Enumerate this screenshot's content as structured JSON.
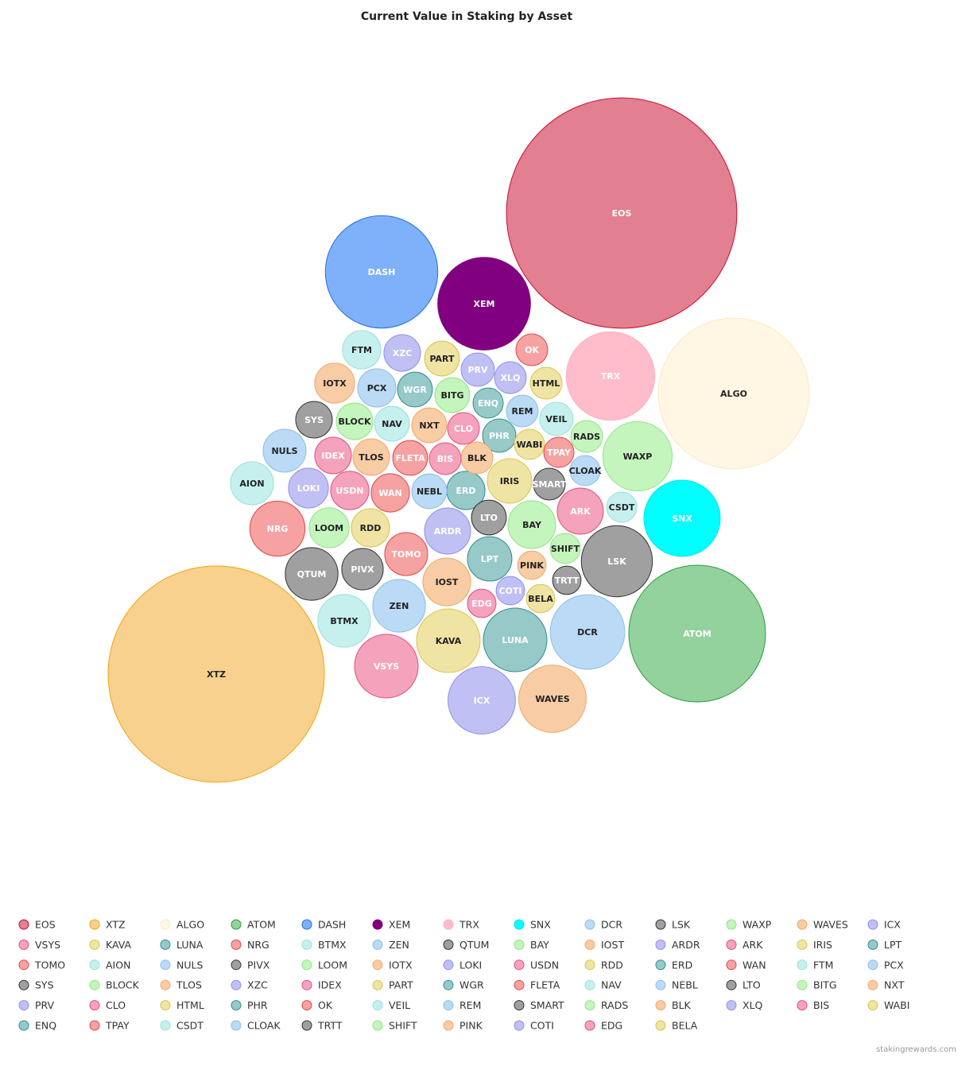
{
  "chart_data": {
    "type": "bubble",
    "title": "Current Value in Staking by Asset",
    "credit": "stakingrewards.com",
    "series": [
      {
        "name": "EOS",
        "color": "#e27f90",
        "value": 210
      },
      {
        "name": "XTZ",
        "color": "#f9d18f",
        "value": 185
      },
      {
        "name": "ALGO",
        "color": "#fff6e3",
        "value": 90
      },
      {
        "name": "ATOM",
        "color": "#93d29d",
        "value": 74
      },
      {
        "name": "DASH",
        "color": "#7fb0fa",
        "value": 50
      },
      {
        "name": "XEM",
        "color": "#800080",
        "value": 34
      },
      {
        "name": "TRX",
        "color": "#ffbccb",
        "value": 31
      },
      {
        "name": "SNX",
        "color": "#00ffff",
        "value": 23
      },
      {
        "name": "DCR",
        "color": "#badaf5",
        "value": 22
      },
      {
        "name": "LSK",
        "color": "#a0a0a0",
        "value": 20
      },
      {
        "name": "WAXP",
        "color": "#c4f5bd",
        "value": 19
      },
      {
        "name": "WAVES",
        "color": "#f8cca4",
        "value": 18
      },
      {
        "name": "ICX",
        "color": "#c0c0f4",
        "value": 18
      },
      {
        "name": "VSYS",
        "color": "#f5a3bd",
        "value": 16
      },
      {
        "name": "KAVA",
        "color": "#efe4a3",
        "value": 16
      },
      {
        "name": "LUNA",
        "color": "#96c9c8",
        "value": 16
      },
      {
        "name": "NRG",
        "color": "#f6a2a2",
        "value": 12
      },
      {
        "name": "BTMX",
        "color": "#c6f0ee",
        "value": 11
      },
      {
        "name": "ZEN",
        "color": "#badaf5",
        "value": 11
      },
      {
        "name": "QTUM",
        "color": "#a0a0a0",
        "value": 11
      },
      {
        "name": "BAY",
        "color": "#c4f5bd",
        "value": 9
      },
      {
        "name": "IOST",
        "color": "#f8cca4",
        "value": 9
      },
      {
        "name": "ARDR",
        "color": "#c0c0f4",
        "value": 8.4
      },
      {
        "name": "ARK",
        "color": "#f5a3bd",
        "value": 8.4
      },
      {
        "name": "IRIS",
        "color": "#efe4a3",
        "value": 7.8
      },
      {
        "name": "LPT",
        "color": "#96c9c8",
        "value": 7.8
      },
      {
        "name": "TOMO",
        "color": "#f6a2a2",
        "value": 7.3
      },
      {
        "name": "AION",
        "color": "#c6f0ee",
        "value": 7.3
      },
      {
        "name": "NULS",
        "color": "#badaf5",
        "value": 7.3
      },
      {
        "name": "PIVX",
        "color": "#a0a0a0",
        "value": 6.8
      },
      {
        "name": "LOOM",
        "color": "#c4f5bd",
        "value": 6.3
      },
      {
        "name": "IOTX",
        "color": "#f8cca4",
        "value": 6.3
      },
      {
        "name": "LOKI",
        "color": "#c0c0f4",
        "value": 6.3
      },
      {
        "name": "USDN",
        "color": "#f5a3bd",
        "value": 5.8
      },
      {
        "name": "RDD",
        "color": "#efe4a3",
        "value": 5.8
      },
      {
        "name": "ERD",
        "color": "#96c9c8",
        "value": 5.8
      },
      {
        "name": "WAN",
        "color": "#f6a2a2",
        "value": 5.8
      },
      {
        "name": "FTM",
        "color": "#c6f0ee",
        "value": 5.8
      },
      {
        "name": "PCX",
        "color": "#badaf5",
        "value": 5.8
      },
      {
        "name": "SYS",
        "color": "#a0a0a0",
        "value": 5.3
      },
      {
        "name": "BLOCK",
        "color": "#c4f5bd",
        "value": 5.3
      },
      {
        "name": "TLOS",
        "color": "#f8cca4",
        "value": 5.3
      },
      {
        "name": "XZC",
        "color": "#c0c0f4",
        "value": 5.3
      },
      {
        "name": "IDEX",
        "color": "#f5a3bd",
        "value": 5.3
      },
      {
        "name": "PART",
        "color": "#efe4a3",
        "value": 4.8
      },
      {
        "name": "WGR",
        "color": "#96c9c8",
        "value": 4.8
      },
      {
        "name": "FLETA",
        "color": "#f6a2a2",
        "value": 4.8
      },
      {
        "name": "NAV",
        "color": "#c6f0ee",
        "value": 4.8
      },
      {
        "name": "NEBL",
        "color": "#badaf5",
        "value": 4.8
      },
      {
        "name": "LTO",
        "color": "#a0a0a0",
        "value": 4.8
      },
      {
        "name": "BITG",
        "color": "#c4f5bd",
        "value": 4.8
      },
      {
        "name": "NXT",
        "color": "#f8cca4",
        "value": 4.8
      },
      {
        "name": "PRV",
        "color": "#c0c0f4",
        "value": 4.4
      },
      {
        "name": "CLO",
        "color": "#f5a3bd",
        "value": 4
      },
      {
        "name": "HTML",
        "color": "#efe4a3",
        "value": 4
      },
      {
        "name": "PHR",
        "color": "#96c9c8",
        "value": 4.4
      },
      {
        "name": "OK",
        "color": "#f6a2a2",
        "value": 4
      },
      {
        "name": "VEIL",
        "color": "#c6f0ee",
        "value": 4.4
      },
      {
        "name": "REM",
        "color": "#badaf5",
        "value": 4
      },
      {
        "name": "SMART",
        "color": "#a0a0a0",
        "value": 4
      },
      {
        "name": "RADS",
        "color": "#c4f5bd",
        "value": 4
      },
      {
        "name": "BLK",
        "color": "#f8cca4",
        "value": 4
      },
      {
        "name": "XLQ",
        "color": "#c0c0f4",
        "value": 4
      },
      {
        "name": "BIS",
        "color": "#f5a3bd",
        "value": 4
      },
      {
        "name": "WABI",
        "color": "#efe4a3",
        "value": 3.6
      },
      {
        "name": "ENQ",
        "color": "#96c9c8",
        "value": 3.6
      },
      {
        "name": "TPAY",
        "color": "#f6a2a2",
        "value": 3.6
      },
      {
        "name": "CSDT",
        "color": "#c6f0ee",
        "value": 3.6
      },
      {
        "name": "CLOAK",
        "color": "#badaf5",
        "value": 3.6
      },
      {
        "name": "TRTT",
        "color": "#a0a0a0",
        "value": 3.2
      },
      {
        "name": "SHIFT",
        "color": "#c4f5bd",
        "value": 3.6
      },
      {
        "name": "PINK",
        "color": "#f8cca4",
        "value": 3.2
      },
      {
        "name": "COTI",
        "color": "#c0c0f4",
        "value": 3.2
      },
      {
        "name": "EDG",
        "color": "#f5a3bd",
        "value": 3.2
      },
      {
        "name": "BELA",
        "color": "#efe4a3",
        "value": 3.2
      }
    ]
  }
}
